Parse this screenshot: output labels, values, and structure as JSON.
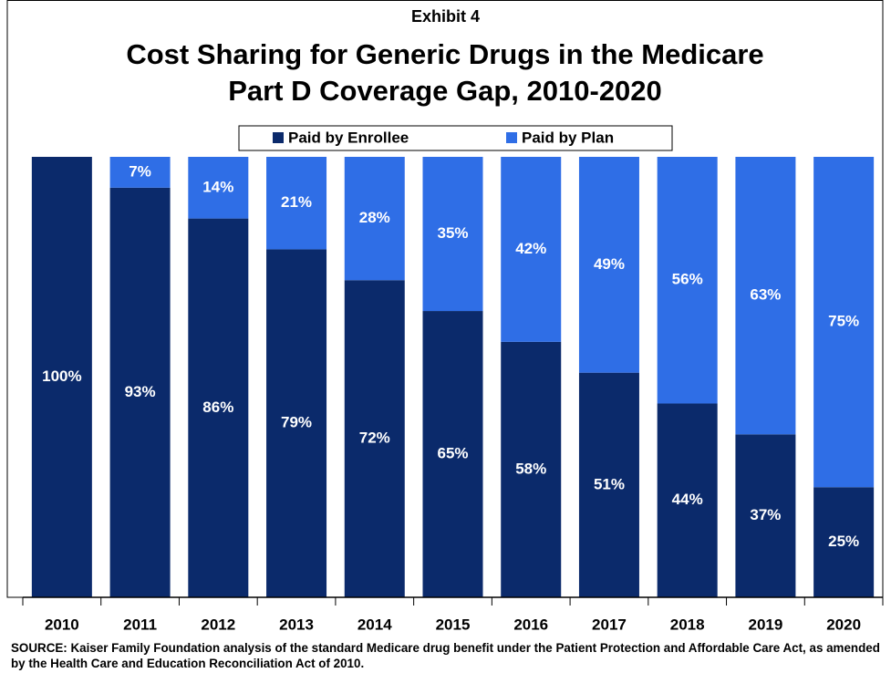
{
  "chart_data": {
    "type": "stacked_bar",
    "subtitle": "Exhibit 4",
    "title": "Cost Sharing for Generic Drugs in the Medicare Part D Coverage Gap, 2010-2020",
    "categories": [
      "2010",
      "2011",
      "2012",
      "2013",
      "2014",
      "2015",
      "2016",
      "2017",
      "2018",
      "2019",
      "2020"
    ],
    "series": [
      {
        "name": "Paid by Enrollee",
        "color": "#0b2a6b",
        "values": [
          100,
          93,
          86,
          79,
          72,
          65,
          58,
          51,
          44,
          37,
          25
        ],
        "value_labels": [
          "100%",
          "93%",
          "86%",
          "79%",
          "72%",
          "65%",
          "58%",
          "51%",
          "44%",
          "37%",
          "25%"
        ]
      },
      {
        "name": "Paid by Plan",
        "color": "#2f6ee6",
        "values": [
          null,
          7,
          14,
          21,
          28,
          35,
          42,
          49,
          56,
          63,
          75
        ],
        "value_labels": [
          null,
          "7%",
          "14%",
          "21%",
          "28%",
          "35%",
          "42%",
          "49%",
          "56%",
          "63%",
          "75%"
        ]
      }
    ],
    "ylim": [
      0,
      100
    ],
    "source": "SOURCE:  Kaiser Family Foundation analysis of the standard Medicare drug benefit under the Patient Protection and Affordable Care Act, as amended by the Health Care and Education Reconciliation Act of 2010."
  }
}
